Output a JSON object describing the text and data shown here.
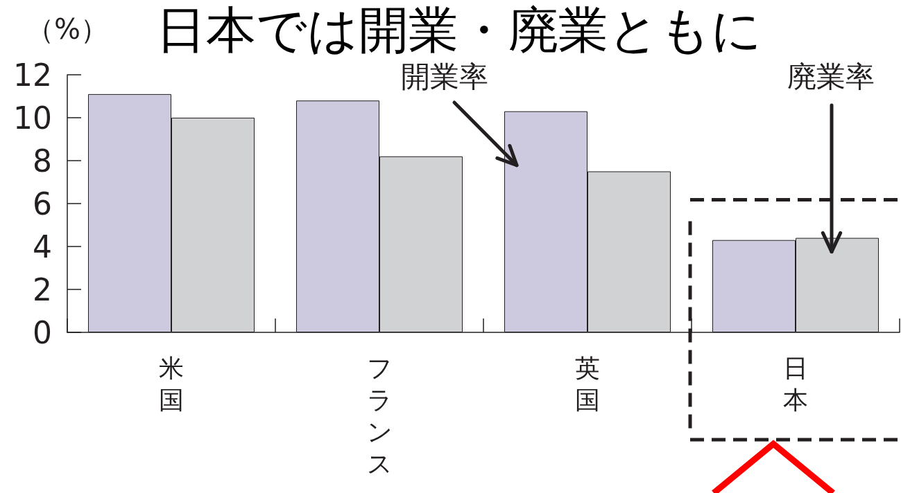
{
  "chart_data": {
    "type": "bar",
    "title": "日本では開業・廃業ともに",
    "ylabel": "（%）",
    "categories": [
      "米国",
      "フランス",
      "英国",
      "日本"
    ],
    "series": [
      {
        "name": "開業率",
        "color": "#cdc9df",
        "values": [
          11.1,
          10.8,
          10.3,
          4.3
        ]
      },
      {
        "name": "廃業率",
        "color": "#d1d2d4",
        "values": [
          10.0,
          8.2,
          7.5,
          4.4
        ]
      }
    ],
    "ylim": [
      0,
      12
    ],
    "yticks": [
      0,
      2,
      4,
      6,
      8,
      10,
      12
    ]
  }
}
